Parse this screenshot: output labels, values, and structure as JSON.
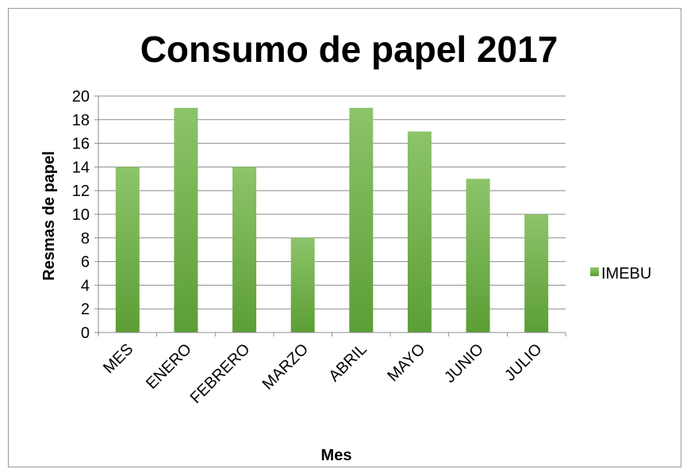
{
  "chart_data": {
    "type": "bar",
    "title": "Consumo de papel 2017",
    "xlabel": "Mes",
    "ylabel": "Resmas de papel",
    "categories": [
      "MES",
      "ENERO",
      "FEBRERO",
      "MARZO",
      "ABRIL",
      "MAYO",
      "JUNIO",
      "JULIO"
    ],
    "series": [
      {
        "name": "IMEBU",
        "values": [
          14,
          19,
          14,
          8,
          19,
          17,
          13,
          10
        ],
        "color": "#6fb04a"
      }
    ],
    "ylim": [
      0,
      20
    ],
    "yticks": [
      0,
      2,
      4,
      6,
      8,
      10,
      12,
      14,
      16,
      18,
      20
    ],
    "grid": true,
    "legend_position": "right"
  }
}
